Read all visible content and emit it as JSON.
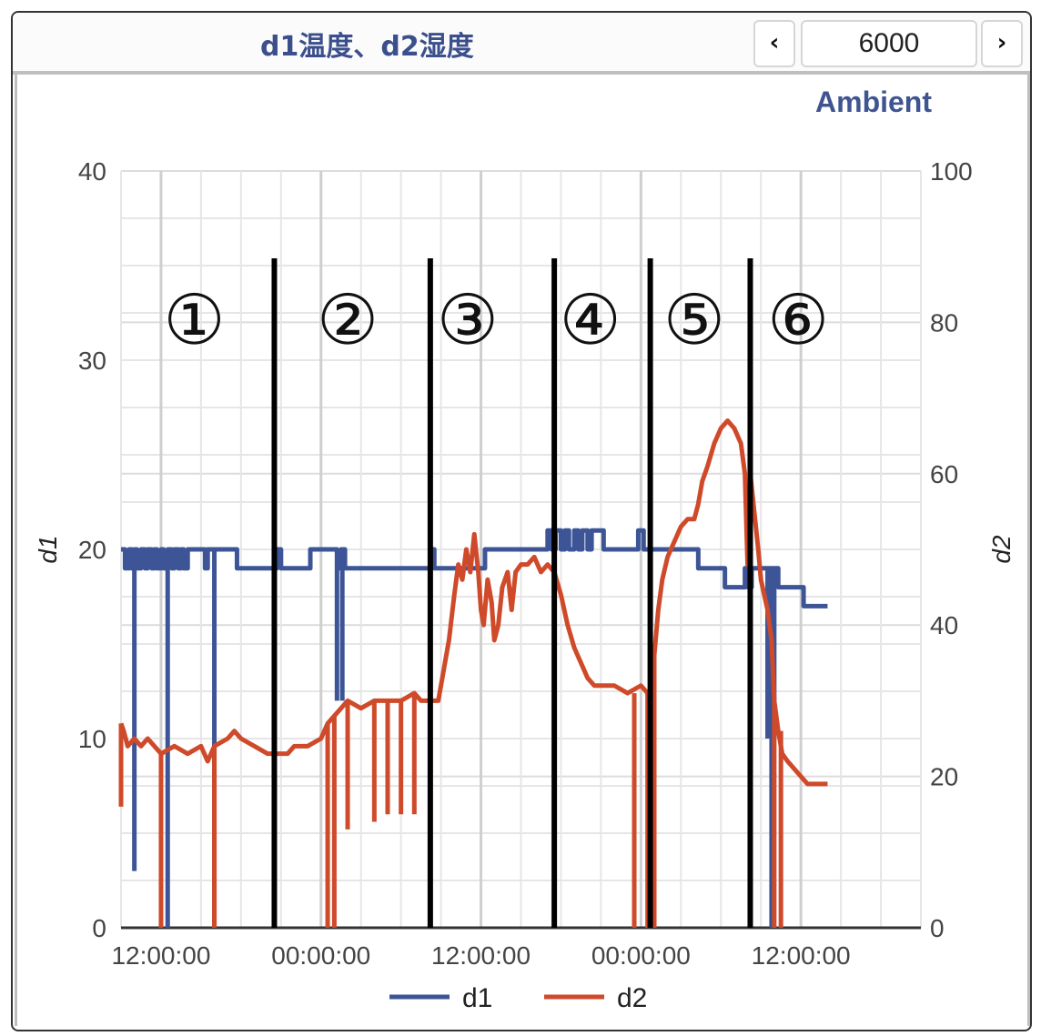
{
  "header": {
    "title": "d1温度、d2湿度",
    "prev_icon": "chevron-left-icon",
    "next_icon": "chevron-right-icon",
    "prev_glyph": "‹",
    "next_glyph": "›",
    "count_value": "6000"
  },
  "ambient_label": "Ambient",
  "colors": {
    "d1": "#3d5597",
    "d2": "#cf4a2a",
    "grid": "#e6e6e6",
    "divider": "#000000"
  },
  "chart_data": {
    "type": "line",
    "x_tick_labels": [
      "12:00:00",
      "00:00:00",
      "12:00:00",
      "00:00:00",
      "12:00:00"
    ],
    "x_range_hours": [
      0,
      60
    ],
    "x_tick_hours": [
      3,
      15,
      27,
      39,
      51
    ],
    "y_left": {
      "label": "d1",
      "range": [
        0,
        40
      ],
      "ticks": [
        0,
        10,
        20,
        30,
        40
      ]
    },
    "y_right": {
      "label": "d2",
      "range": [
        0,
        100
      ],
      "ticks": [
        0,
        20,
        40,
        60,
        80,
        100
      ]
    },
    "grid": true,
    "legend_position": "bottom",
    "series": [
      {
        "name": "d1",
        "axis": "left",
        "points": [
          [
            0,
            20
          ],
          [
            0.3,
            19
          ],
          [
            0.6,
            20
          ],
          [
            0.8,
            19
          ],
          [
            1.0,
            20
          ],
          [
            1.2,
            19
          ],
          [
            1.5,
            20
          ],
          [
            1.8,
            19
          ],
          [
            2.0,
            20
          ],
          [
            2.3,
            19
          ],
          [
            2.5,
            20
          ],
          [
            2.7,
            19
          ],
          [
            3.0,
            20
          ],
          [
            3.2,
            19
          ],
          [
            3.5,
            20
          ],
          [
            3.8,
            19
          ],
          [
            4.0,
            20
          ],
          [
            4.3,
            19
          ],
          [
            4.5,
            20
          ],
          [
            4.7,
            19
          ],
          [
            5.0,
            20
          ],
          [
            5.3,
            20
          ],
          [
            6.0,
            20
          ],
          [
            6.3,
            19
          ],
          [
            6.5,
            20
          ],
          [
            8.5,
            20
          ],
          [
            8.7,
            19
          ],
          [
            10.0,
            19
          ],
          [
            11.5,
            19
          ],
          [
            11.7,
            20
          ],
          [
            12.0,
            19
          ],
          [
            13.5,
            19
          ],
          [
            14.0,
            19
          ],
          [
            14.2,
            20
          ],
          [
            16.0,
            20
          ],
          [
            16.2,
            19
          ],
          [
            16.5,
            20
          ],
          [
            16.8,
            19
          ],
          [
            17.5,
            19
          ],
          [
            23.0,
            19
          ],
          [
            23.3,
            20
          ],
          [
            23.5,
            19
          ],
          [
            27.0,
            19
          ],
          [
            27.3,
            20
          ],
          [
            31.5,
            20
          ],
          [
            32.0,
            21
          ],
          [
            32.3,
            20
          ],
          [
            32.6,
            21
          ],
          [
            33.0,
            20
          ],
          [
            33.3,
            21
          ],
          [
            33.6,
            20
          ],
          [
            34.0,
            21
          ],
          [
            34.3,
            20
          ],
          [
            34.6,
            21
          ],
          [
            35.0,
            20
          ],
          [
            35.3,
            21
          ],
          [
            36.0,
            21
          ],
          [
            36.2,
            20
          ],
          [
            38.5,
            20
          ],
          [
            38.8,
            21
          ],
          [
            39.2,
            20
          ],
          [
            41.0,
            20
          ],
          [
            43.0,
            20
          ],
          [
            43.3,
            19
          ],
          [
            44.0,
            19
          ],
          [
            45.0,
            19
          ],
          [
            45.3,
            18
          ],
          [
            46.5,
            18
          ],
          [
            46.8,
            19
          ],
          [
            47.0,
            18
          ],
          [
            47.3,
            19
          ],
          [
            49.0,
            19
          ],
          [
            49.3,
            18
          ],
          [
            51.0,
            18
          ],
          [
            51.2,
            17
          ],
          [
            53.0,
            17
          ]
        ],
        "spikes": [
          [
            1.0,
            3
          ],
          [
            3.5,
            0
          ],
          [
            7.0,
            0
          ],
          [
            16.2,
            12
          ],
          [
            16.6,
            12
          ],
          [
            48.5,
            10
          ],
          [
            49.0,
            10
          ],
          [
            48.8,
            0
          ]
        ]
      },
      {
        "name": "d2",
        "axis": "right",
        "points": [
          [
            0,
            27
          ],
          [
            0.2,
            26
          ],
          [
            0.5,
            24
          ],
          [
            1.0,
            25
          ],
          [
            1.5,
            24
          ],
          [
            2.0,
            25
          ],
          [
            2.5,
            24
          ],
          [
            3.0,
            23
          ],
          [
            4.0,
            24
          ],
          [
            5.0,
            23
          ],
          [
            6.0,
            24
          ],
          [
            6.5,
            22
          ],
          [
            7.0,
            24
          ],
          [
            8.0,
            25
          ],
          [
            8.5,
            26
          ],
          [
            9.0,
            25
          ],
          [
            10.0,
            24
          ],
          [
            11.0,
            23
          ],
          [
            12.5,
            23
          ],
          [
            13.0,
            24
          ],
          [
            14.0,
            24
          ],
          [
            15.0,
            25
          ],
          [
            15.5,
            27
          ],
          [
            16.0,
            28
          ],
          [
            16.5,
            29
          ],
          [
            17.0,
            30
          ],
          [
            18.0,
            29
          ],
          [
            19.0,
            30
          ],
          [
            20.0,
            30
          ],
          [
            21.0,
            30
          ],
          [
            22.0,
            31
          ],
          [
            22.5,
            30
          ],
          [
            23.5,
            30
          ],
          [
            23.8,
            30
          ],
          [
            24.2,
            34
          ],
          [
            24.6,
            38
          ],
          [
            25.0,
            44
          ],
          [
            25.3,
            48
          ],
          [
            25.6,
            46
          ],
          [
            25.9,
            50
          ],
          [
            26.2,
            47
          ],
          [
            26.5,
            52
          ],
          [
            26.8,
            47
          ],
          [
            27.0,
            42
          ],
          [
            27.2,
            40
          ],
          [
            27.5,
            46
          ],
          [
            27.8,
            43
          ],
          [
            28.0,
            38
          ],
          [
            28.3,
            40
          ],
          [
            28.6,
            45
          ],
          [
            29.0,
            47
          ],
          [
            29.3,
            42
          ],
          [
            29.6,
            47
          ],
          [
            30.0,
            48
          ],
          [
            30.5,
            48
          ],
          [
            31.0,
            49
          ],
          [
            31.5,
            47
          ],
          [
            32.0,
            48
          ],
          [
            32.5,
            47
          ],
          [
            33.0,
            44
          ],
          [
            33.5,
            40
          ],
          [
            34.0,
            37
          ],
          [
            34.5,
            35
          ],
          [
            35.0,
            33
          ],
          [
            35.5,
            32
          ],
          [
            36.0,
            32
          ],
          [
            37.0,
            32
          ],
          [
            38.0,
            31
          ],
          [
            39.0,
            32
          ],
          [
            39.5,
            31
          ],
          [
            39.8,
            20
          ],
          [
            40.0,
            36
          ],
          [
            40.3,
            42
          ],
          [
            40.6,
            46
          ],
          [
            41.0,
            49
          ],
          [
            41.5,
            51
          ],
          [
            42.0,
            53
          ],
          [
            42.5,
            54
          ],
          [
            43.0,
            54
          ],
          [
            43.3,
            56
          ],
          [
            43.6,
            59
          ],
          [
            44.0,
            61
          ],
          [
            44.5,
            64
          ],
          [
            45.0,
            66
          ],
          [
            45.5,
            67
          ],
          [
            46.0,
            66
          ],
          [
            46.5,
            64
          ],
          [
            46.8,
            60
          ],
          [
            47.0,
            48
          ],
          [
            47.2,
            60
          ],
          [
            47.5,
            55
          ],
          [
            47.8,
            50
          ],
          [
            48.0,
            46
          ],
          [
            48.5,
            42
          ],
          [
            48.8,
            38
          ],
          [
            49.0,
            30
          ],
          [
            49.3,
            26
          ],
          [
            49.6,
            23
          ],
          [
            50.0,
            22
          ],
          [
            50.5,
            21
          ],
          [
            51.0,
            20
          ],
          [
            51.5,
            19
          ],
          [
            53.0,
            19
          ]
        ],
        "spikes": [
          [
            0,
            16
          ],
          [
            3.0,
            0
          ],
          [
            7.0,
            0
          ],
          [
            15.5,
            0
          ],
          [
            16.0,
            0
          ],
          [
            17.0,
            13
          ],
          [
            19.0,
            14
          ],
          [
            20.0,
            15
          ],
          [
            21.0,
            15
          ],
          [
            22.0,
            15
          ],
          [
            38.5,
            0
          ],
          [
            39.5,
            0
          ],
          [
            40.0,
            0
          ],
          [
            49.0,
            0
          ],
          [
            49.5,
            0
          ]
        ]
      }
    ],
    "phase_labels": [
      "①",
      "②",
      "③",
      "④",
      "⑤",
      "⑥"
    ],
    "phase_dividers_hours": [
      11.5,
      23.2,
      32.5,
      39.7,
      47.2
    ],
    "phase_label_hours": [
      5.5,
      17.0,
      26.0,
      35.2,
      43.0,
      50.8
    ]
  }
}
